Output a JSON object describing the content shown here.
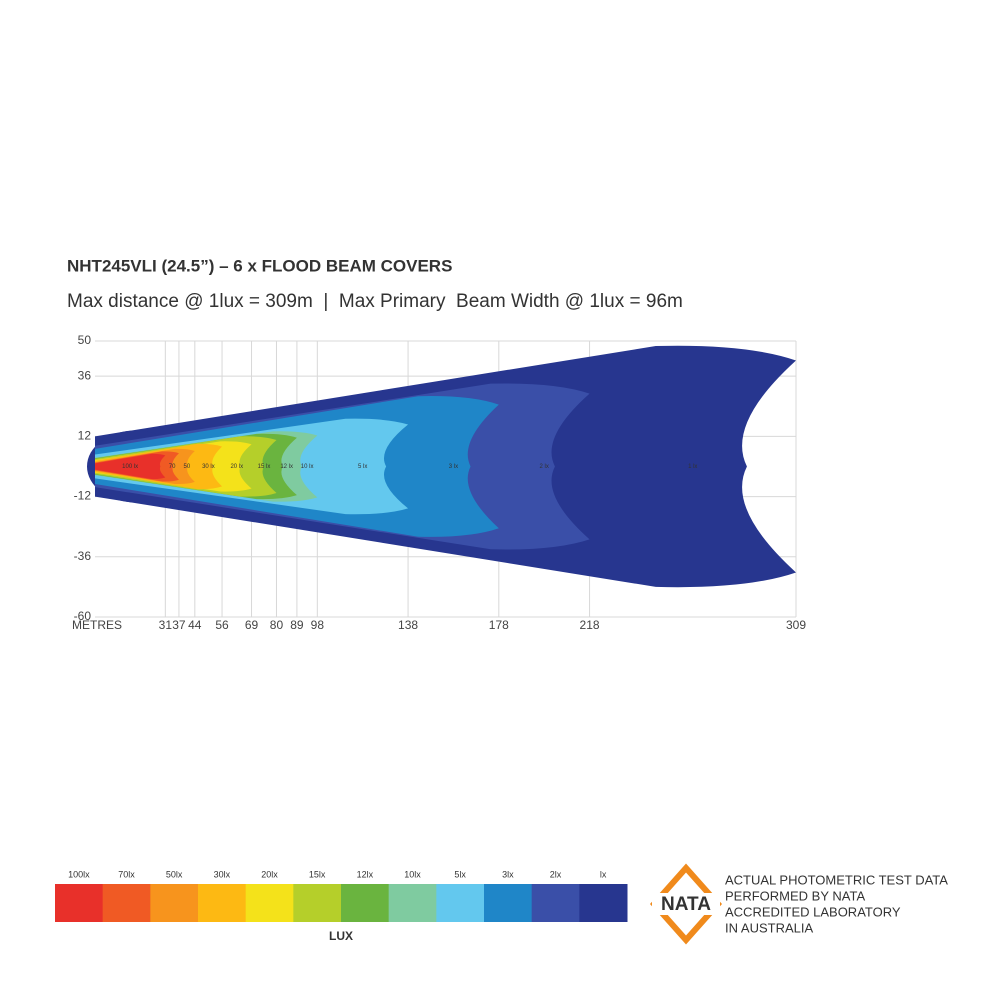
{
  "chart_data": {
    "type": "beam",
    "title": "NHT245VLI (24.5”) – 6 x FLOOD BEAM COVERS",
    "subtitle": "Max distance @ 1lux = 309m  |  Max Primary  Beam Width @ 1lux = 96m",
    "x_label": "METRES",
    "xlim": [
      0,
      309
    ],
    "ylim": [
      -60,
      50
    ],
    "xticks": [
      31,
      37,
      44,
      56,
      69,
      80,
      89,
      98,
      138,
      178,
      218,
      309
    ],
    "yticks": [
      50,
      36,
      12,
      -12,
      -36,
      -60
    ],
    "grid": true,
    "legend_title": "LUX",
    "series": [
      {
        "name": "100lx",
        "label": "100 lx",
        "color": "#e8302a",
        "reach": 31,
        "half_width": 5
      },
      {
        "name": "70lx",
        "label": "70",
        "color": "#f05a24",
        "reach": 37,
        "half_width": 6
      },
      {
        "name": "50lx",
        "label": "50",
        "color": "#f7941d",
        "reach": 44,
        "half_width": 7
      },
      {
        "name": "30lx",
        "label": "30 lx",
        "color": "#fdb913",
        "reach": 56,
        "half_width": 9
      },
      {
        "name": "20lx",
        "label": "20 lx",
        "color": "#f4e21a",
        "reach": 69,
        "half_width": 10
      },
      {
        "name": "15lx",
        "label": "15 lx",
        "color": "#b5cf2a",
        "reach": 80,
        "half_width": 12
      },
      {
        "name": "12lx",
        "label": "12 lx",
        "color": "#6ab43f",
        "reach": 89,
        "half_width": 13
      },
      {
        "name": "10lx",
        "label": "10 lx",
        "color": "#7fcba0",
        "reach": 98,
        "half_width": 14
      },
      {
        "name": "5lx",
        "label": "5 lx",
        "color": "#63c8ee",
        "reach": 138,
        "half_width": 19
      },
      {
        "name": "3lx",
        "label": "3 lx",
        "color": "#1f86c8",
        "reach": 178,
        "half_width": 28
      },
      {
        "name": "2lx",
        "label": "2 lx",
        "color": "#3a4fa8",
        "reach": 218,
        "half_width": 33
      },
      {
        "name": "lx",
        "label": "1 lx",
        "color": "#27368f",
        "reach": 309,
        "half_width": 48
      }
    ],
    "badge": {
      "logo": "NATA",
      "lines": [
        "ACTUAL PHOTOMETRIC TEST DATA",
        "PERFORMED BY NATA",
        "ACCREDITED LABORATORY",
        "IN AUSTRALIA"
      ]
    }
  }
}
